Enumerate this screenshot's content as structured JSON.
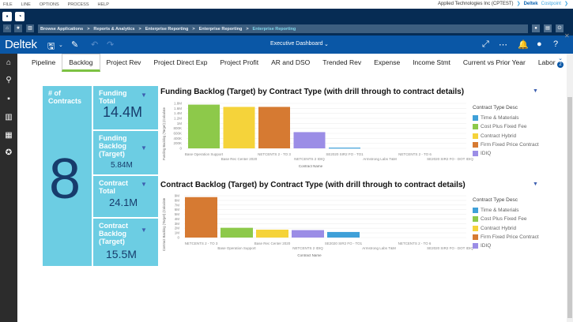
{
  "menu": [
    "FILE",
    "LINE",
    "OPTIONS",
    "PROCESS",
    "HELP"
  ],
  "company": {
    "name": "Applied Technologies Inc (CPTEST)",
    "brand1": "Deltek",
    "brand2": "Costpoint"
  },
  "breadcrumb": [
    "Browse Applications",
    ">",
    "Reports & Analytics",
    ">",
    "Enterprise Reporting",
    ">",
    "Enterprise Reporting",
    ">",
    "Enterprise Reporting"
  ],
  "toolbar": {
    "logo": "Deltek",
    "dashboard": "Executive Dashboard",
    "notification_count": "2"
  },
  "tabs": [
    "Pipeline",
    "Backlog",
    "Project Rev",
    "Project Direct Exp",
    "Project Profit",
    "AR and DSO",
    "Trended Rev",
    "Expense",
    "Income Stmt",
    "Current vs Prior Year",
    "Labor"
  ],
  "selected_tab": "Backlog",
  "kpis": {
    "contracts": {
      "label": "# of Contracts",
      "value": "8"
    },
    "funding_total": {
      "label": "Funding Total",
      "value": "14.4M"
    },
    "funding_backlog": {
      "label": "Funding Backlog (Target)",
      "value": "5.84M"
    },
    "contract_total": {
      "label": "Contract Total",
      "value": "24.1M"
    },
    "contract_backlog": {
      "label": "Contract Backlog (Target)",
      "value": "15.5M"
    }
  },
  "legend": {
    "title": "Contract Type Desc",
    "items": [
      {
        "label": "Time & Materials",
        "color": "#3fa0d8"
      },
      {
        "label": "Cost Plus Fixed Fee",
        "color": "#8dc94a"
      },
      {
        "label": "Contract Hybrid",
        "color": "#f5d33a"
      },
      {
        "label": "Firm Fixed Price Contract",
        "color": "#d67a32"
      },
      {
        "label": "IDIQ",
        "color": "#9b8de6"
      }
    ]
  },
  "chart_data": [
    {
      "type": "bar",
      "title": "Funding Backlog (Target) by Contract Type (with drill through to contract details)",
      "xlabel": "Contract Name",
      "ylabel": "Funding Backlog (Target) (Calculate",
      "ylim": [
        0,
        1800000
      ],
      "yticks": [
        "0",
        "200K",
        "400K",
        "600K",
        "800K",
        "1M",
        "1.2M",
        "1.4M",
        "1.6M",
        "1.8M"
      ],
      "categories": [
        "Base Operation Support",
        "Base Rec Center 2020",
        "NETCENTS 2 - TO 3",
        "NETCENTS 2 IDIQ",
        "SE2020 SIR2 FO - TO1",
        "Armstrong Labs T&M",
        "NETCENTS 2 - TO 6",
        "SE2020 SIR2 FO - DOT IDIQ"
      ],
      "values": [
        1750000,
        1660000,
        1660000,
        650000,
        30000,
        0,
        0,
        0
      ],
      "colors": [
        "#8dc94a",
        "#f5d33a",
        "#d67a32",
        "#9b8de6",
        "#3fa0d8",
        "#3fa0d8",
        "#d67a32",
        "#9b8de6"
      ]
    },
    {
      "type": "bar",
      "title": "Contract Backlog (Target) by Contract Type (with drill through to contract details)",
      "xlabel": "Contract Name",
      "ylabel": "Contract Backlog (Target) (Calculate",
      "ylim": [
        0,
        9000000
      ],
      "yticks": [
        "0",
        "1M",
        "2M",
        "3M",
        "4M",
        "5M",
        "6M",
        "7M",
        "8M",
        "9M"
      ],
      "categories": [
        "NETCENTS 2 - TO 3",
        "Base Operation Support",
        "Base Rec Center 2020",
        "NETCENTS 2 IDIQ",
        "SE2020 SIR2 FO - TO1",
        "Armstrong Labs T&M",
        "NETCENTS 2 - TO 6",
        "SE2020 SIR2 FO - DOT IDIQ"
      ],
      "values": [
        8700000,
        2100000,
        1700000,
        1600000,
        1200000,
        0,
        0,
        0
      ],
      "colors": [
        "#d67a32",
        "#8dc94a",
        "#f5d33a",
        "#9b8de6",
        "#3fa0d8",
        "#3fa0d8",
        "#d67a32",
        "#9b8de6"
      ]
    }
  ]
}
